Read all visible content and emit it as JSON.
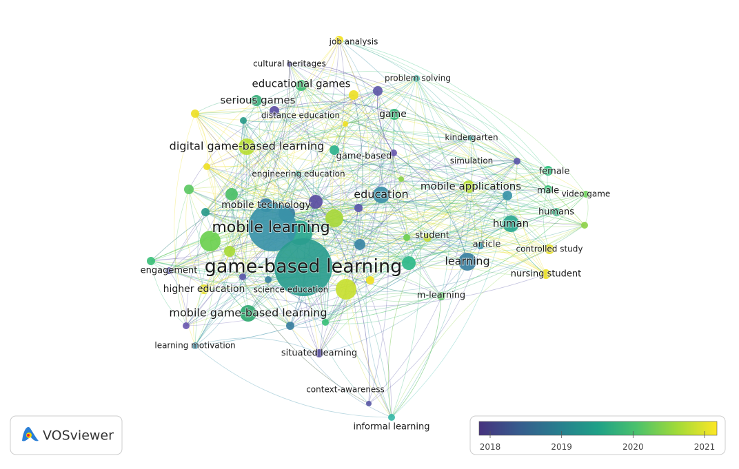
{
  "nodes": [
    {
      "label": "job analysis"
    },
    {
      "label": "cultural heritages"
    },
    {
      "label": "problem solving"
    },
    {
      "label": "educational games"
    },
    {
      "label": "serious games"
    },
    {
      "label": "distance education"
    },
    {
      "label": "game"
    },
    {
      "label": "digital game-based learning"
    },
    {
      "label": "kindergarten"
    },
    {
      "label": "game-based"
    },
    {
      "label": "simulation"
    },
    {
      "label": "female"
    },
    {
      "label": "engineering education"
    },
    {
      "label": "mobile applications"
    },
    {
      "label": "male"
    },
    {
      "label": "video game"
    },
    {
      "label": "education"
    },
    {
      "label": "mobile technology"
    },
    {
      "label": "humans"
    },
    {
      "label": "mobile learning"
    },
    {
      "label": "human"
    },
    {
      "label": "student"
    },
    {
      "label": "article"
    },
    {
      "label": "controlled study"
    },
    {
      "label": "learning"
    },
    {
      "label": "game-based learning"
    },
    {
      "label": "engagement"
    },
    {
      "label": "nursing student"
    },
    {
      "label": "higher education"
    },
    {
      "label": "science education"
    },
    {
      "label": "m-learning"
    },
    {
      "label": "mobile game-based learning"
    },
    {
      "label": "learning motivation"
    },
    {
      "label": "situated learning"
    },
    {
      "label": "context-awareness"
    },
    {
      "label": "informal learning"
    }
  ],
  "legend": {
    "ticks": [
      2018,
      2019,
      2020,
      2021
    ]
  },
  "logo": {
    "text": "VOSviewer"
  }
}
